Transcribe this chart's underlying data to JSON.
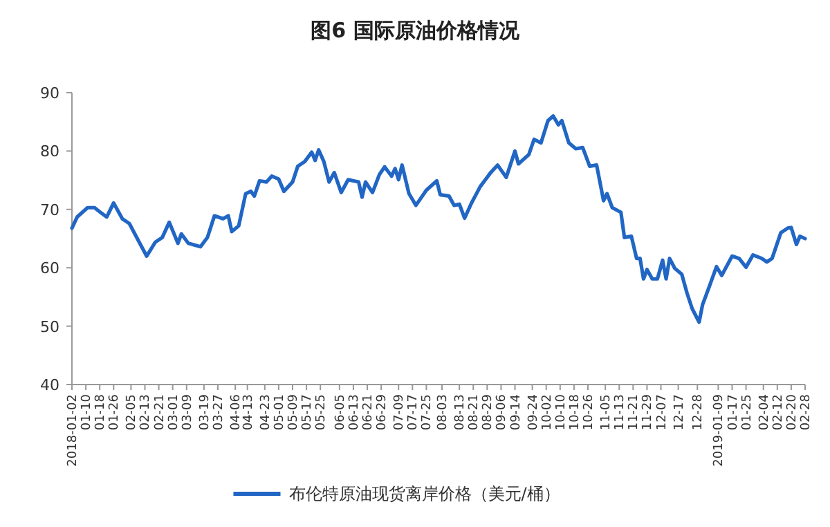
{
  "chart_data": {
    "type": "line",
    "title": "图6  国际原油价格情况",
    "ylim": [
      40,
      90
    ],
    "yticks": [
      40,
      50,
      60,
      70,
      80,
      90
    ],
    "xlim": [
      "2018-01-02",
      "2019-02-28"
    ],
    "xticks": [
      {
        "value": "2018-01-02",
        "label": "2018-01-02"
      },
      {
        "value": "2018-01-10",
        "label": "01-10"
      },
      {
        "value": "2018-01-18",
        "label": "01-18"
      },
      {
        "value": "2018-01-26",
        "label": "01-26"
      },
      {
        "value": "2018-02-05",
        "label": "02-05"
      },
      {
        "value": "2018-02-13",
        "label": "02-13"
      },
      {
        "value": "2018-02-21",
        "label": "02-21"
      },
      {
        "value": "2018-03-01",
        "label": "03-01"
      },
      {
        "value": "2018-03-09",
        "label": "03-09"
      },
      {
        "value": "2018-03-19",
        "label": "03-19"
      },
      {
        "value": "2018-03-27",
        "label": "03-27"
      },
      {
        "value": "2018-04-06",
        "label": "04-06"
      },
      {
        "value": "2018-04-13",
        "label": "04-13"
      },
      {
        "value": "2018-04-23",
        "label": "04-23"
      },
      {
        "value": "2018-05-01",
        "label": "05-01"
      },
      {
        "value": "2018-05-09",
        "label": "05-09"
      },
      {
        "value": "2018-05-17",
        "label": "05-17"
      },
      {
        "value": "2018-05-25",
        "label": "05-25"
      },
      {
        "value": "2018-06-05",
        "label": "06-05"
      },
      {
        "value": "2018-06-13",
        "label": "06-13"
      },
      {
        "value": "2018-06-21",
        "label": "06-21"
      },
      {
        "value": "2018-06-29",
        "label": "06-29"
      },
      {
        "value": "2018-07-09",
        "label": "07-09"
      },
      {
        "value": "2018-07-17",
        "label": "07-17"
      },
      {
        "value": "2018-07-25",
        "label": "07-25"
      },
      {
        "value": "2018-08-03",
        "label": "08-03"
      },
      {
        "value": "2018-08-13",
        "label": "08-13"
      },
      {
        "value": "2018-08-21",
        "label": "08-21"
      },
      {
        "value": "2018-08-29",
        "label": "08-29"
      },
      {
        "value": "2018-09-06",
        "label": "09-06"
      },
      {
        "value": "2018-09-14",
        "label": "09-14"
      },
      {
        "value": "2018-09-24",
        "label": "09-24"
      },
      {
        "value": "2018-10-02",
        "label": "10-02"
      },
      {
        "value": "2018-10-10",
        "label": "10-10"
      },
      {
        "value": "2018-10-18",
        "label": "10-18"
      },
      {
        "value": "2018-10-26",
        "label": "10-26"
      },
      {
        "value": "2018-11-05",
        "label": "11-05"
      },
      {
        "value": "2018-11-13",
        "label": "11-13"
      },
      {
        "value": "2018-11-21",
        "label": "11-21"
      },
      {
        "value": "2018-11-29",
        "label": "11-29"
      },
      {
        "value": "2018-12-07",
        "label": "12-07"
      },
      {
        "value": "2018-12-17",
        "label": "12-17"
      },
      {
        "value": "2018-12-28",
        "label": "12-28"
      },
      {
        "value": "2019-01-09",
        "label": "2019-01-09"
      },
      {
        "value": "2019-01-17",
        "label": "01-17"
      },
      {
        "value": "2019-01-25",
        "label": "01-25"
      },
      {
        "value": "2019-02-04",
        "label": "02-04"
      },
      {
        "value": "2019-02-12",
        "label": "02-12"
      },
      {
        "value": "2019-02-20",
        "label": "02-20"
      },
      {
        "value": "2019-02-28",
        "label": "02-28"
      }
    ],
    "legend": "bottom",
    "grid": false,
    "series": [
      {
        "name": "布伦特原油现货离岸价格（美元/桶）",
        "color": "#2166c4",
        "x": [
          "2018-01-02",
          "2018-01-05",
          "2018-01-11",
          "2018-01-15",
          "2018-01-18",
          "2018-01-22",
          "2018-01-26",
          "2018-01-31",
          "2018-02-04",
          "2018-02-09",
          "2018-02-14",
          "2018-02-19",
          "2018-02-23",
          "2018-02-27",
          "2018-03-04",
          "2018-03-06",
          "2018-03-10",
          "2018-03-17",
          "2018-03-21",
          "2018-03-25",
          "2018-03-30",
          "2018-04-02",
          "2018-04-04",
          "2018-04-08",
          "2018-04-12",
          "2018-04-15",
          "2018-04-17",
          "2018-04-20",
          "2018-04-24",
          "2018-04-27",
          "2018-05-01",
          "2018-05-04",
          "2018-05-09",
          "2018-05-12",
          "2018-05-16",
          "2018-05-20",
          "2018-05-22",
          "2018-05-24",
          "2018-05-27",
          "2018-05-30",
          "2018-06-02",
          "2018-06-06",
          "2018-06-10",
          "2018-06-16",
          "2018-06-18",
          "2018-06-20",
          "2018-06-24",
          "2018-06-28",
          "2018-07-01",
          "2018-07-05",
          "2018-07-07",
          "2018-07-09",
          "2018-07-11",
          "2018-07-15",
          "2018-07-19",
          "2018-07-25",
          "2018-07-31",
          "2018-08-02",
          "2018-08-07",
          "2018-08-10",
          "2018-08-13",
          "2018-08-16",
          "2018-08-20",
          "2018-08-25",
          "2018-08-31",
          "2018-09-04",
          "2018-09-09",
          "2018-09-14",
          "2018-09-16",
          "2018-09-22",
          "2018-09-25",
          "2018-09-29",
          "2018-10-03",
          "2018-10-06",
          "2018-10-09",
          "2018-10-11",
          "2018-10-15",
          "2018-10-19",
          "2018-10-23",
          "2018-10-27",
          "2018-10-31",
          "2018-11-04",
          "2018-11-06",
          "2018-11-09",
          "2018-11-14",
          "2018-11-16",
          "2018-11-20",
          "2018-11-23",
          "2018-11-25",
          "2018-11-27",
          "2018-11-29",
          "2018-12-02",
          "2018-12-05",
          "2018-12-08",
          "2018-12-10",
          "2018-12-12",
          "2018-12-15",
          "2018-12-19",
          "2018-12-22",
          "2018-12-25",
          "2018-12-29",
          "2018-12-31",
          "2019-01-04",
          "2019-01-08",
          "2019-01-11",
          "2019-01-17",
          "2019-01-21",
          "2019-01-25",
          "2019-01-29",
          "2019-02-03",
          "2019-02-06",
          "2019-02-09",
          "2019-02-14",
          "2019-02-18",
          "2019-02-20",
          "2019-02-23",
          "2019-02-25",
          "2019-02-28"
        ],
        "values": [
          66.8,
          68.7,
          70.3,
          70.3,
          69.6,
          68.7,
          71.1,
          68.4,
          67.6,
          64.8,
          62.0,
          64.4,
          65.2,
          67.8,
          64.2,
          65.8,
          64.2,
          63.6,
          65.2,
          68.9,
          68.4,
          68.9,
          66.2,
          67.2,
          72.7,
          73.1,
          72.3,
          74.9,
          74.7,
          75.7,
          75.2,
          73.1,
          74.7,
          77.4,
          78.2,
          79.8,
          78.4,
          80.2,
          78.2,
          74.7,
          76.3,
          72.9,
          75.1,
          74.7,
          72.1,
          74.7,
          72.9,
          76.0,
          77.3,
          75.7,
          77.0,
          75.1,
          77.6,
          72.7,
          70.7,
          73.3,
          74.9,
          72.5,
          72.3,
          70.7,
          70.9,
          68.5,
          71.1,
          73.9,
          76.3,
          77.6,
          75.5,
          80.0,
          77.8,
          79.4,
          82.0,
          81.4,
          85.2,
          86.0,
          84.5,
          85.2,
          81.4,
          80.4,
          80.6,
          77.4,
          77.6,
          71.5,
          72.7,
          70.3,
          69.5,
          65.2,
          65.4,
          61.6,
          61.6,
          58.1,
          59.7,
          58.1,
          58.1,
          61.3,
          58.1,
          61.6,
          59.9,
          58.9,
          55.7,
          53.0,
          50.7,
          53.7,
          56.9,
          60.2,
          58.7,
          62.0,
          61.6,
          60.1,
          62.2,
          61.6,
          61.0,
          61.6,
          66.0,
          66.8,
          66.9,
          64.0,
          65.4,
          65.0
        ]
      }
    ]
  }
}
